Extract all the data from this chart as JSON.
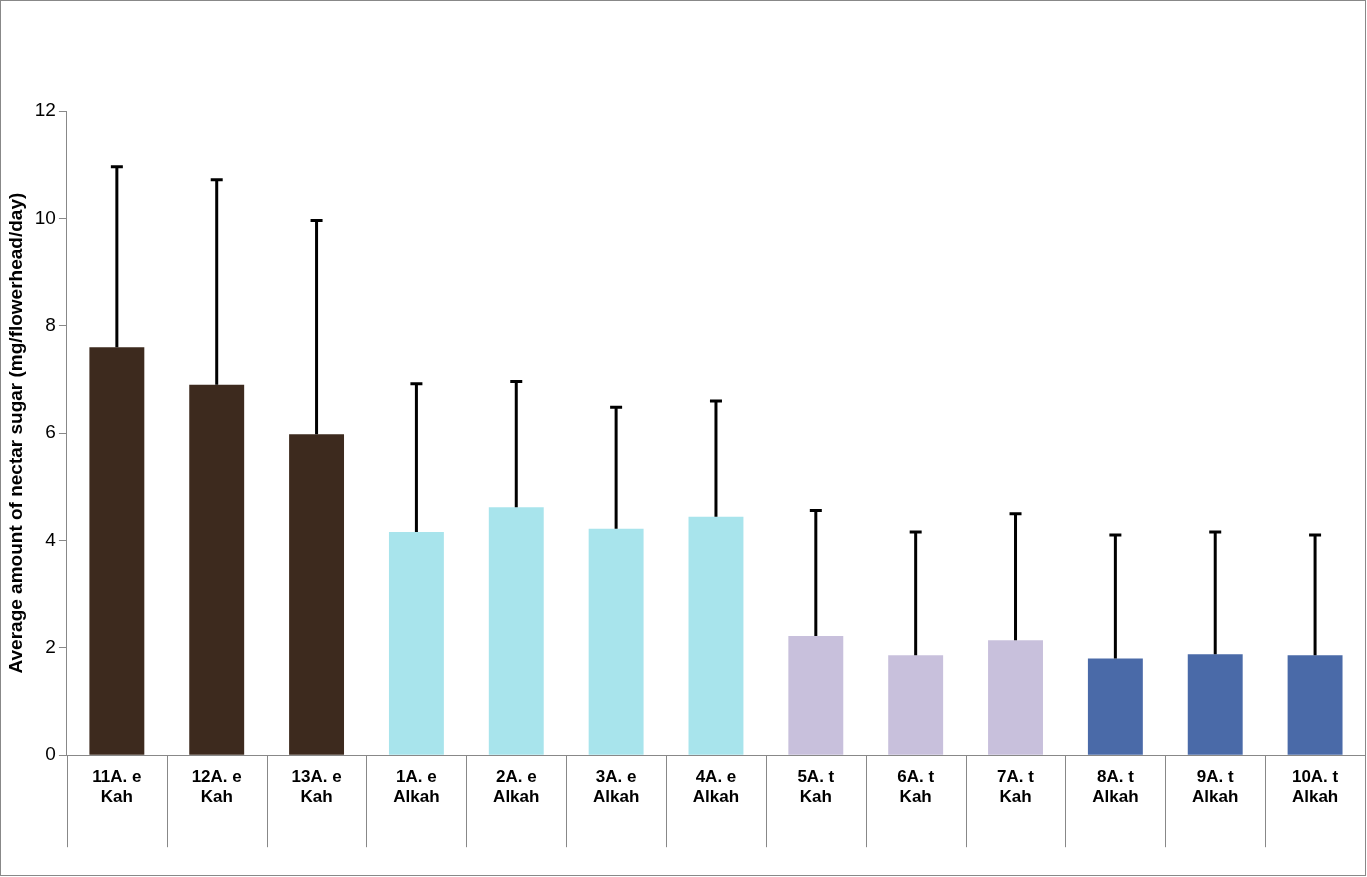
{
  "chart_data": {
    "type": "bar",
    "ylabel": "Average amount of nectar sugar (mg/flowerhead/day)",
    "categories": [
      "11A. e\nKah",
      "12A. e\nKah",
      "13A. e\nKah",
      "1A. e\nAlkah",
      "2A. e\nAlkah",
      "3A. e\nAlkah",
      "4A. e\nAlkah",
      "5A. t\nKah",
      "6A. t\nKah",
      "7A. t\nKah",
      "8A. t\nAlkah",
      "9A. t\nAlkah",
      "10A. t\nAlkah"
    ],
    "values": [
      7.6,
      6.9,
      5.98,
      4.16,
      4.62,
      4.22,
      4.44,
      2.22,
      1.86,
      2.14,
      1.8,
      1.88,
      1.86
    ],
    "colors": [
      "#3d2a1e",
      "#3d2a1e",
      "#3d2a1e",
      "#a8e4ec",
      "#a8e4ec",
      "#a8e4ec",
      "#a8e4ec",
      "#c8c0dc",
      "#c8c0dc",
      "#c8c0dc",
      "#4a6aa8",
      "#4a6aa8",
      "#4a6aa8"
    ],
    "errors": [
      [
        7.6,
        10.96
      ],
      [
        6.9,
        10.72
      ],
      [
        5.98,
        9.96
      ],
      [
        4.16,
        6.92
      ],
      [
        4.62,
        6.96
      ],
      [
        4.22,
        6.48
      ],
      [
        4.44,
        6.6
      ],
      [
        2.22,
        4.56
      ],
      [
        1.86,
        4.16
      ],
      [
        2.14,
        4.5
      ],
      [
        1.8,
        4.1
      ],
      [
        1.88,
        4.16
      ],
      [
        1.86,
        4.1
      ]
    ],
    "ylim": [
      0,
      12
    ],
    "yticks": [
      0,
      2,
      4,
      6,
      8,
      10,
      12
    ],
    "legend": false
  }
}
